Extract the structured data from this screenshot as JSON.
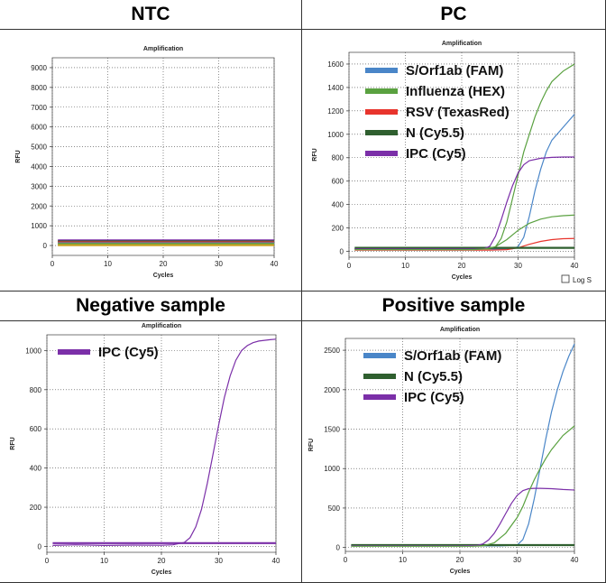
{
  "panels": [
    {
      "title": "NTC"
    },
    {
      "title": "PC"
    },
    {
      "title": "Negative sample"
    },
    {
      "title": "Positive sample"
    }
  ],
  "chart_data": [
    {
      "type": "line",
      "title": "Amplification",
      "xlabel": "Cycles",
      "ylabel": "RFU",
      "xlim": [
        0,
        40
      ],
      "ylim": [
        -500,
        9500
      ],
      "xticks": [
        0,
        10,
        20,
        30,
        40
      ],
      "yticks": [
        0,
        1000,
        2000,
        3000,
        4000,
        5000,
        6000,
        7000,
        8000,
        9000
      ],
      "grid": true,
      "legend": "none",
      "series": [
        {
          "color": "#7b2fa8",
          "x": [
            1,
            40
          ],
          "y": [
            260,
            260
          ]
        },
        {
          "color": "#2f5f2f",
          "x": [
            1,
            40
          ],
          "y": [
            210,
            210
          ]
        },
        {
          "color": "#e8342c",
          "x": [
            1,
            40
          ],
          "y": [
            160,
            160
          ]
        },
        {
          "color": "#4a86c8",
          "x": [
            1,
            40
          ],
          "y": [
            110,
            110
          ]
        },
        {
          "color": "#5aa140",
          "x": [
            1,
            40
          ],
          "y": [
            80,
            80
          ]
        },
        {
          "color": "#c8a020",
          "x": [
            1,
            40
          ],
          "y": [
            20,
            20
          ]
        }
      ]
    },
    {
      "type": "line",
      "title": "Amplification",
      "xlabel": "Cycles",
      "ylabel": "RFU",
      "xlim": [
        0,
        40
      ],
      "ylim": [
        -50,
        1700
      ],
      "xticks": [
        0,
        10,
        20,
        30,
        40
      ],
      "yticks": [
        0,
        200,
        400,
        600,
        800,
        1000,
        1200,
        1400,
        1600
      ],
      "grid": true,
      "legend": "top-left",
      "checkbox_label": "Log S",
      "series": [
        {
          "name": "S/Orf1ab (FAM)",
          "color": "#4a86c8",
          "x": [
            1,
            20,
            26,
            29,
            30,
            31,
            32,
            33,
            34,
            35,
            36,
            38,
            40
          ],
          "y": [
            20,
            20,
            20,
            22,
            40,
            120,
            300,
            520,
            700,
            850,
            950,
            1060,
            1170
          ]
        },
        {
          "name": "Influenza (HEX)",
          "color": "#5aa140",
          "x": [
            1,
            20,
            25,
            26,
            27,
            28,
            29,
            30,
            31,
            32,
            33,
            34,
            35,
            36,
            38,
            40
          ],
          "y": [
            20,
            20,
            20,
            40,
            110,
            250,
            450,
            650,
            850,
            1000,
            1150,
            1270,
            1370,
            1450,
            1540,
            1600
          ]
        },
        {
          "name": "RSV (TexasRed)",
          "color": "#e8342c",
          "x": [
            1,
            25,
            28,
            30,
            32,
            34,
            36,
            38,
            40
          ],
          "y": [
            10,
            10,
            15,
            30,
            60,
            85,
            100,
            108,
            110
          ]
        },
        {
          "name": "N (Cy5.5)",
          "color": "#2f5f2f",
          "x": [
            1,
            40
          ],
          "y": [
            30,
            30
          ]
        },
        {
          "name": "IPC (Cy5)",
          "color": "#7b2fa8",
          "x": [
            1,
            20,
            24,
            25,
            26,
            27,
            28,
            29,
            30,
            31,
            32,
            34,
            36,
            38,
            40
          ],
          "y": [
            20,
            20,
            22,
            45,
            130,
            270,
            420,
            560,
            670,
            740,
            775,
            795,
            803,
            806,
            806
          ]
        },
        {
          "color": "#5aa140",
          "x": [
            1,
            22,
            24,
            26,
            28,
            30,
            32,
            34,
            36,
            38,
            40
          ],
          "y": [
            15,
            15,
            20,
            40,
            100,
            180,
            240,
            275,
            295,
            305,
            310
          ]
        }
      ]
    },
    {
      "type": "line",
      "title": "Amplification",
      "xlabel": "Cycles",
      "ylabel": "RFU",
      "xlim": [
        0,
        40
      ],
      "ylim": [
        -30,
        1080
      ],
      "xticks": [
        0,
        10,
        20,
        30,
        40
      ],
      "yticks": [
        0,
        200,
        400,
        600,
        800,
        1000
      ],
      "grid": true,
      "legend": "top-left",
      "series": [
        {
          "name": "IPC (Cy5)",
          "color": "#7b2fa8",
          "x": [
            1,
            5,
            10,
            15,
            20,
            22,
            24,
            25,
            26,
            27,
            28,
            29,
            30,
            31,
            32,
            33,
            34,
            35,
            36,
            37,
            38,
            39,
            40
          ],
          "y": [
            5,
            8,
            5,
            7,
            6,
            8,
            20,
            45,
            100,
            190,
            320,
            470,
            620,
            760,
            870,
            950,
            1000,
            1025,
            1040,
            1048,
            1052,
            1055,
            1058
          ]
        },
        {
          "color": "#7b2fa8",
          "x": [
            1,
            40
          ],
          "y": [
            17,
            17
          ]
        }
      ]
    },
    {
      "type": "line",
      "title": "Amplification",
      "xlabel": "Cycles",
      "ylabel": "RFU",
      "xlim": [
        0,
        40
      ],
      "ylim": [
        -50,
        2650
      ],
      "xticks": [
        0,
        10,
        20,
        30,
        40
      ],
      "yticks": [
        0,
        500,
        1000,
        1500,
        2000,
        2500
      ],
      "grid": true,
      "legend": "top-left",
      "series": [
        {
          "name": "S/Orf1ab (FAM)",
          "color": "#4a86c8",
          "x": [
            1,
            20,
            27,
            30,
            31,
            32,
            33,
            34,
            35,
            36,
            37,
            38,
            39,
            40
          ],
          "y": [
            20,
            20,
            20,
            30,
            100,
            300,
            620,
            1000,
            1380,
            1720,
            2000,
            2230,
            2420,
            2580
          ]
        },
        {
          "name": "N (Cy5.5)",
          "color": "#2f5f2f",
          "x": [
            1,
            40
          ],
          "y": [
            30,
            30
          ]
        },
        {
          "name": "IPC (Cy5)",
          "color": "#7b2fa8",
          "x": [
            1,
            20,
            23,
            24,
            25,
            26,
            27,
            28,
            29,
            30,
            31,
            32,
            33,
            34,
            36,
            38,
            40
          ],
          "y": [
            20,
            20,
            25,
            45,
            95,
            180,
            300,
            430,
            560,
            660,
            720,
            745,
            750,
            750,
            745,
            735,
            728
          ]
        },
        {
          "color": "#5aa140",
          "x": [
            1,
            22,
            24,
            26,
            28,
            30,
            31,
            32,
            33,
            34,
            35,
            36,
            38,
            40
          ],
          "y": [
            15,
            15,
            20,
            60,
            180,
            380,
            520,
            700,
            860,
            1000,
            1130,
            1240,
            1420,
            1540
          ]
        }
      ]
    }
  ]
}
